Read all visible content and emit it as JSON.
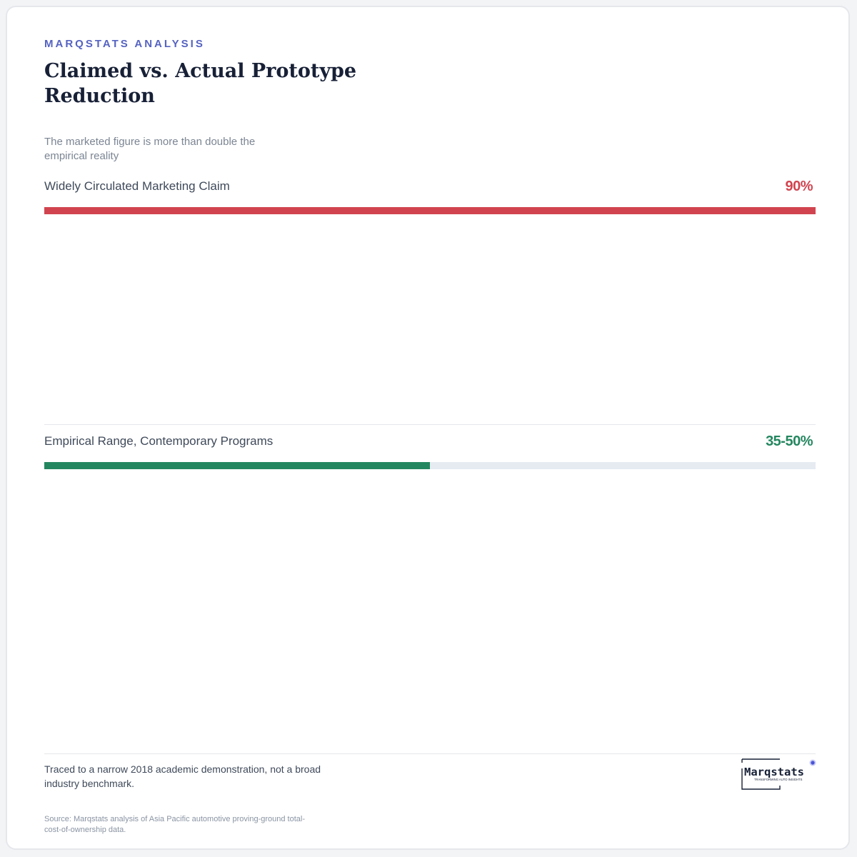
{
  "header": {
    "eyebrow": "MARQSTATS ANALYSIS",
    "title": "Claimed vs. Actual Prototype Reduction",
    "subtitle": "The marketed figure is more than double the empirical reality"
  },
  "chart_data": {
    "type": "bar",
    "orientation": "horizontal",
    "categories": [
      "Widely Circulated Marketing Claim",
      "Empirical Range, Contemporary Programs"
    ],
    "values": [
      90,
      45
    ],
    "value_labels": [
      "90%",
      "35-50%"
    ],
    "xlim": [
      0,
      90
    ],
    "colors": [
      "#d1444f",
      "#24865f"
    ],
    "track_color": "#e5ebf1",
    "grid": false
  },
  "footer": {
    "note": "Traced to a narrow 2018 academic demonstration, not a broad industry benchmark.",
    "source": "Source: Marqstats analysis of Asia Pacific automotive proving-ground total-cost-of-ownership data."
  },
  "logo": {
    "wordmark": "Marqstats",
    "tagline": "TRANSFORMING AUTO INSIGHTS"
  }
}
